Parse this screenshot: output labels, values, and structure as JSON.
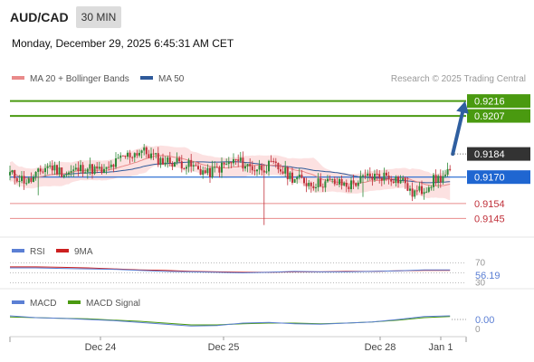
{
  "header": {
    "symbol": "AUD/CAD",
    "timeframe": "30 MIN",
    "datetime": "Monday, December 29, 2025 6:45:31 AM CET"
  },
  "legend": {
    "ma20_label": "MA 20 + Bollinger Bands",
    "ma50_label": "MA 50",
    "credit": "Research © 2025 Trading Central"
  },
  "colors": {
    "ma20": "#e98a8a",
    "ma50": "#2f5a9a",
    "bollinger_fill": "#fbdcdc",
    "candle_up": "#2e8b3a",
    "candle_down": "#c0303a",
    "resistance": "#4a9a10",
    "pivot": "#1f66d1",
    "support": "#e88b8b",
    "last_price": "#333333",
    "arrow": "#2f5fa0",
    "rsi": "#5b7fd4",
    "rsi_ma": "#cc2020",
    "macd": "#5b7fd4",
    "macd_signal": "#4a9a10"
  },
  "chart_data": {
    "type": "candlestick",
    "x_labels": [
      "Dec 24",
      "Dec 25",
      "Dec 28",
      "Jan 1"
    ],
    "price_axis_range": [
      0.9137,
      0.9224
    ],
    "last_price": 0.9184,
    "target_arrow": {
      "from": 0.9184,
      "to": 0.9216
    },
    "levels": [
      {
        "value": 0.9216,
        "label": "0.9216",
        "kind": "resistance"
      },
      {
        "value": 0.9207,
        "label": "0.9207",
        "kind": "resistance"
      },
      {
        "value": 0.917,
        "label": "0.9170",
        "kind": "pivot"
      },
      {
        "value": 0.9154,
        "label": "0.9154",
        "kind": "support"
      },
      {
        "value": 0.9145,
        "label": "0.9145",
        "kind": "support"
      }
    ],
    "candle_anchors": [
      [
        0,
        0.9172
      ],
      [
        8,
        0.9167
      ],
      [
        16,
        0.9177
      ],
      [
        24,
        0.9172
      ],
      [
        32,
        0.9176
      ],
      [
        40,
        0.9173
      ],
      [
        48,
        0.9182
      ],
      [
        56,
        0.9186
      ],
      [
        64,
        0.918
      ],
      [
        72,
        0.9179
      ],
      [
        80,
        0.9175
      ],
      [
        84,
        0.9172
      ],
      [
        88,
        0.9175
      ],
      [
        96,
        0.918
      ],
      [
        104,
        0.9175
      ],
      [
        112,
        0.9177
      ],
      [
        120,
        0.917
      ],
      [
        128,
        0.9166
      ],
      [
        136,
        0.9167
      ],
      [
        144,
        0.9165
      ],
      [
        152,
        0.917
      ],
      [
        160,
        0.9171
      ],
      [
        168,
        0.9167
      ],
      [
        170,
        0.916
      ],
      [
        175,
        0.9162
      ],
      [
        180,
        0.9168
      ],
      [
        184,
        0.917
      ],
      [
        187,
        0.9173
      ]
    ],
    "rsi": {
      "label": "RSI",
      "ma_label": "9MA",
      "value_label": "56.19",
      "axis_labels": [
        "70",
        "30"
      ],
      "values": [
        60,
        60,
        59,
        58,
        57,
        55,
        53,
        52,
        51,
        50,
        51,
        53,
        52,
        52,
        53,
        54,
        56,
        56
      ],
      "ma_values": [
        62,
        62,
        61,
        60,
        58,
        56,
        55,
        53,
        52,
        51,
        51,
        52,
        52,
        53,
        53,
        54,
        55,
        55
      ]
    },
    "macd": {
      "label": "MACD",
      "signal_label": "MACD Signal",
      "value_label": "0.00",
      "axis_labels": [
        "0"
      ],
      "values": [
        0.6,
        0.3,
        0.2,
        0.0,
        -0.2,
        -0.5,
        -0.8,
        -1.1,
        -1.0,
        -0.6,
        -0.5,
        -0.7,
        -0.8,
        -0.6,
        -0.4,
        0.0,
        0.5,
        0.6
      ],
      "signal_values": [
        0.4,
        0.3,
        0.2,
        0.1,
        -0.1,
        -0.3,
        -0.6,
        -0.9,
        -0.9,
        -0.7,
        -0.6,
        -0.6,
        -0.7,
        -0.6,
        -0.4,
        -0.1,
        0.3,
        0.5
      ]
    }
  }
}
